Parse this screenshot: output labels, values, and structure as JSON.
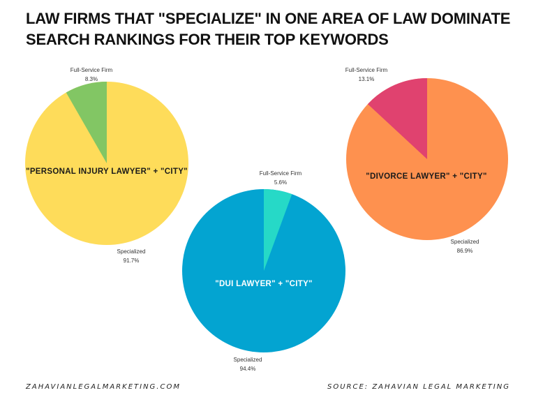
{
  "title": {
    "line1": "LAW FIRMS THAT \"SPECIALIZE\" IN ONE AREA OF LAW DOMINATE",
    "line2": "SEARCH RANKINGS FOR THEIR TOP KEYWORDS"
  },
  "footer": {
    "left": "ZAHAVIANLEGALMARKETING.COM",
    "right": "SOURCE: ZAHAVIAN LEGAL MARKETING"
  },
  "pies": [
    {
      "label": "\"PERSONAL INJURY LAWYER\" + \"CITY\"",
      "label_color": "#1a1a1a",
      "slices": [
        {
          "name": "Full-Service Firm",
          "value_text": "8.3%",
          "color": "#82c664"
        },
        {
          "name": "Specialized",
          "value_text": "91.7%",
          "color": "#fedc5a"
        }
      ]
    },
    {
      "label": "\"DUI LAWYER\" + \"CITY\"",
      "label_color": "#ffffff",
      "slices": [
        {
          "name": "Full-Service Firm",
          "value_text": "5.6%",
          "color": "#26d9c7"
        },
        {
          "name": "Specialized",
          "value_text": "94.4%",
          "color": "#03a4d1"
        }
      ]
    },
    {
      "label": "\"DIVORCE LAWYER\" + \"CITY\"",
      "label_color": "#1a1a1a",
      "slices": [
        {
          "name": "Full-Service Firm",
          "value_text": "13.1%",
          "color": "#e0426f"
        },
        {
          "name": "Specialized",
          "value_text": "86.9%",
          "color": "#fe914f"
        }
      ]
    }
  ],
  "chart_data": [
    {
      "type": "pie",
      "title": "\"PERSONAL INJURY LAWYER\" + \"CITY\"",
      "categories": [
        "Full-Service Firm",
        "Specialized"
      ],
      "values": [
        8.3,
        91.7
      ],
      "colors": [
        "#82c664",
        "#fedc5a"
      ]
    },
    {
      "type": "pie",
      "title": "\"DUI LAWYER\" + \"CITY\"",
      "categories": [
        "Full-Service Firm",
        "Specialized"
      ],
      "values": [
        5.6,
        94.4
      ],
      "colors": [
        "#26d9c7",
        "#03a4d1"
      ]
    },
    {
      "type": "pie",
      "title": "\"DIVORCE LAWYER\" + \"CITY\"",
      "categories": [
        "Full-Service Firm",
        "Specialized"
      ],
      "values": [
        13.1,
        86.9
      ],
      "colors": [
        "#e0426f",
        "#fe914f"
      ]
    }
  ]
}
